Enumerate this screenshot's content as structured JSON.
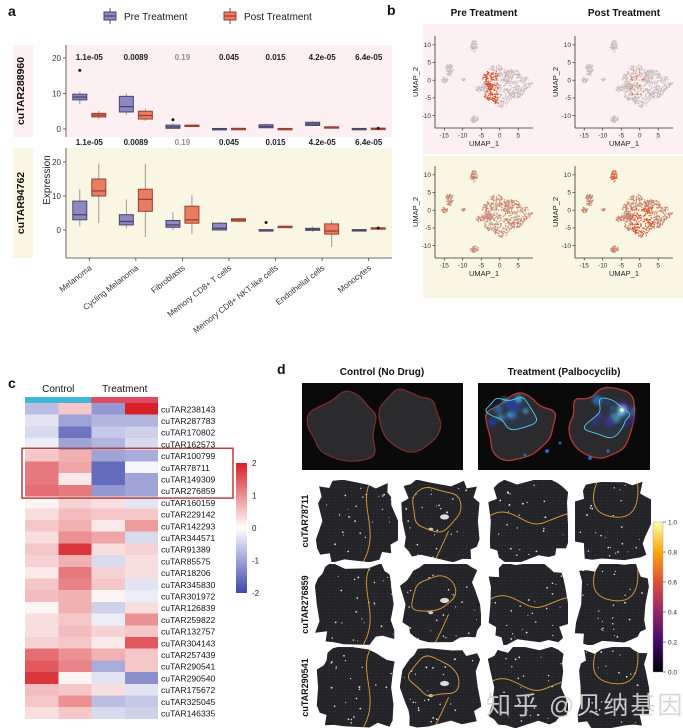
{
  "panel_labels": {
    "a": "a",
    "b": "b",
    "c": "c",
    "d": "d"
  },
  "watermark": "知乎 @贝纳基因",
  "chart_data": [
    {
      "id": "a",
      "type": "box",
      "legend": [
        {
          "name": "Pre Treatment",
          "fill": "#8d87c3",
          "stroke": "#4a4668"
        },
        {
          "name": "Post Treatment",
          "fill": "#e87d64",
          "stroke": "#99402f"
        }
      ],
      "ylabel": "Expression",
      "categories": [
        "Melanoma",
        "Cycling Melanoma",
        "Fibroblasts",
        "Memory CD8+ T cells",
        "Memory CD8+ NKT-like cells",
        "Endothelial cells",
        "Monocytes"
      ],
      "nonsig_pvalue": "0.19",
      "facets": [
        {
          "gene": "cuTAR288960",
          "bg": "#fcf0f2",
          "yticks": [
            0,
            10,
            20
          ],
          "pvalues": [
            "1.1e-05",
            "0.0089",
            "0.19",
            "0.045",
            "0.015",
            "4.2e-05",
            "6.4e-05"
          ],
          "pre": [
            {
              "lo": 7,
              "q1": 8.2,
              "med": 9,
              "q3": 9.8,
              "hi": 10.5,
              "out": [
                16.5
              ]
            },
            {
              "lo": 4,
              "q1": 4.8,
              "med": 6.3,
              "q3": 9.2,
              "hi": 10,
              "out": []
            },
            {
              "lo": 0,
              "q1": 0.2,
              "med": 0.6,
              "q3": 1.1,
              "hi": 1.5,
              "out": [
                2.6
              ]
            },
            {
              "lo": 0,
              "q1": 0.02,
              "med": 0.08,
              "q3": 0.15,
              "hi": 0.2,
              "out": []
            },
            {
              "lo": 0.2,
              "q1": 0.35,
              "med": 0.7,
              "q3": 1.2,
              "hi": 1.5,
              "out": []
            },
            {
              "lo": 0.8,
              "q1": 1.0,
              "med": 1.4,
              "q3": 1.9,
              "hi": 2.2,
              "out": []
            },
            {
              "lo": 0,
              "q1": 0.03,
              "med": 0.1,
              "q3": 0.16,
              "hi": 0.2,
              "out": []
            }
          ],
          "post": [
            {
              "lo": 2.8,
              "q1": 3.4,
              "med": 3.9,
              "q3": 4.4,
              "hi": 5.1,
              "out": []
            },
            {
              "lo": 2.3,
              "q1": 2.8,
              "med": 3.8,
              "q3": 5.0,
              "hi": 5.8,
              "out": []
            },
            {
              "lo": 0.6,
              "q1": 0.75,
              "med": 0.9,
              "q3": 1.1,
              "hi": 1.2,
              "out": []
            },
            {
              "lo": 0,
              "q1": 0.05,
              "med": 0.12,
              "q3": 0.18,
              "hi": 0.22,
              "out": []
            },
            {
              "lo": 0,
              "q1": 0.04,
              "med": 0.1,
              "q3": 0.16,
              "hi": 0.2,
              "out": []
            },
            {
              "lo": 0.3,
              "q1": 0.4,
              "med": 0.5,
              "q3": 0.62,
              "hi": 0.72,
              "out": []
            },
            {
              "lo": 0,
              "q1": 0.06,
              "med": 0.15,
              "q3": 0.22,
              "hi": 0.27,
              "out": [
                0.2
              ]
            }
          ]
        },
        {
          "gene": "cuTAR94762",
          "bg": "#f9f7e3",
          "yticks": [
            0,
            10,
            20
          ],
          "pvalues": [
            "1.1e-05",
            "0.0089",
            "0.19",
            "0.045",
            "0.015",
            "4.2e-05",
            "6.4e-05"
          ],
          "pre": [
            {
              "lo": 1,
              "q1": 3,
              "med": 4.5,
              "q3": 8.5,
              "hi": 12,
              "out": []
            },
            {
              "lo": 0.5,
              "q1": 1.5,
              "med": 2.5,
              "q3": 4.5,
              "hi": 9,
              "out": []
            },
            {
              "lo": 0,
              "q1": 0.8,
              "med": 1.5,
              "q3": 2.8,
              "hi": 5.2,
              "out": []
            },
            {
              "lo": -0.2,
              "q1": 0,
              "med": 0.5,
              "q3": 2,
              "hi": 2.3,
              "out": []
            },
            {
              "lo": -0.1,
              "q1": -0.02,
              "med": 0.03,
              "q3": 0.08,
              "hi": 0.12,
              "out": [
                2.2
              ]
            },
            {
              "lo": -0.5,
              "q1": -0.1,
              "med": 0.2,
              "q3": 0.5,
              "hi": 1,
              "out": []
            },
            {
              "lo": -0.05,
              "q1": 0,
              "med": 0.05,
              "q3": 0.1,
              "hi": 0.15,
              "out": []
            }
          ],
          "post": [
            {
              "lo": 2,
              "q1": 10,
              "med": 11.5,
              "q3": 15,
              "hi": 19.5,
              "out": []
            },
            {
              "lo": -2,
              "q1": 5.5,
              "med": 9,
              "q3": 12,
              "hi": 19.5,
              "out": []
            },
            {
              "lo": -1.2,
              "q1": 2,
              "med": 3,
              "q3": 7,
              "hi": 10.2,
              "out": []
            },
            {
              "lo": 2.2,
              "q1": 2.6,
              "med": 3,
              "q3": 3.3,
              "hi": 3.5,
              "out": []
            },
            {
              "lo": 0.8,
              "q1": 0.9,
              "med": 1,
              "q3": 1.1,
              "hi": 1.2,
              "out": []
            },
            {
              "lo": -5,
              "q1": -1.2,
              "med": -0.3,
              "q3": 1.8,
              "hi": 2.8,
              "out": []
            },
            {
              "lo": 0.3,
              "q1": 0.42,
              "med": 0.55,
              "q3": 0.65,
              "hi": 0.72,
              "out": [
                0.6
              ]
            }
          ]
        }
      ]
    },
    {
      "id": "b",
      "type": "scatter",
      "col_titles": [
        "Pre Treatment",
        "Post Treatment"
      ],
      "xlabel": "UMAP_1",
      "ylabel": "UMAP_2",
      "xticks": [
        -15,
        -10,
        -5,
        0,
        5
      ],
      "yticks": [
        -10,
        -5,
        0,
        5,
        10
      ],
      "xlim": [
        -17.5,
        9
      ],
      "ylim": [
        -13.5,
        12.5
      ],
      "row_bg": [
        "#fcf0f2",
        "#f9f7e3"
      ]
    },
    {
      "id": "c",
      "type": "heatmap",
      "col_groups": [
        {
          "name": "Control",
          "color": "#41b6d9",
          "n_cols": 2
        },
        {
          "name": "Treatment",
          "color": "#e04a5f",
          "n_cols": 2
        }
      ],
      "colorbar_ticks": [
        2,
        1,
        0,
        -1,
        -2
      ],
      "vlim": [
        -2,
        2
      ],
      "highlight_rows": [
        "cuTAR100799",
        "cuTAR78711",
        "cuTAR149309",
        "cuTAR276859"
      ],
      "rows": [
        "cuTAR238143",
        "cuTAR287783",
        "cuTAR170802",
        "cuTAR162573",
        "cuTAR100799",
        "cuTAR78711",
        "cuTAR149309",
        "cuTAR276859",
        "cuTAR160159",
        "cuTAR229142",
        "cuTAR142293",
        "cuTAR344571",
        "cuTAR91389",
        "cuTAR85575",
        "cuTAR18206",
        "cuTAR345830",
        "cuTAR301972",
        "cuTAR126839",
        "cuTAR259822",
        "cuTAR132757",
        "cuTAR304143",
        "cuTAR257439",
        "cuTAR290541",
        "cuTAR290540",
        "cuTAR175672",
        "cuTAR325045",
        "cuTAR146335"
      ],
      "values": [
        [
          -0.7,
          0.5,
          -1.1,
          2.0
        ],
        [
          -0.3,
          -1.0,
          -0.8,
          -0.8
        ],
        [
          -0.4,
          -1.5,
          -0.6,
          -0.5
        ],
        [
          -0.2,
          -1.0,
          -0.8,
          -0.4
        ],
        [
          0.5,
          0.7,
          -1.0,
          -0.9
        ],
        [
          1.2,
          0.8,
          -1.6,
          -0.1
        ],
        [
          1.2,
          0.2,
          -1.6,
          -1.0
        ],
        [
          1.3,
          1.2,
          -1.1,
          -1.0
        ],
        [
          0.1,
          0.4,
          0.3,
          -0.3
        ],
        [
          0.3,
          0.6,
          0.5,
          0.5
        ],
        [
          0.5,
          0.7,
          0.2,
          0.9
        ],
        [
          0.3,
          1.0,
          0.8,
          -0.4
        ],
        [
          0.5,
          1.8,
          0.3,
          0.4
        ],
        [
          0.4,
          0.7,
          -0.4,
          0.3
        ],
        [
          0.2,
          1.2,
          0.4,
          0.3
        ],
        [
          0.5,
          1.1,
          0.5,
          -0.3
        ],
        [
          0.6,
          0.7,
          0.1,
          -0.2
        ],
        [
          0.1,
          0.7,
          -0.5,
          0.3
        ],
        [
          0.3,
          0.5,
          -0.2,
          1.0
        ],
        [
          0.3,
          0.6,
          0.4,
          0.5
        ],
        [
          0.4,
          0.5,
          0.2,
          1.5
        ],
        [
          1.3,
          1.0,
          0.7,
          0.5
        ],
        [
          1.5,
          1.1,
          -0.9,
          0.5
        ],
        [
          1.8,
          0.1,
          -0.3,
          -1.2
        ],
        [
          0.6,
          0.5,
          0.3,
          -0.3
        ],
        [
          0.5,
          1.0,
          -0.7,
          -0.6
        ],
        [
          0.3,
          0.5,
          -0.4,
          -0.5
        ]
      ]
    },
    {
      "id": "d",
      "type": "table",
      "col_titles": [
        "Control (No Drug)",
        "Treatment (Palbocyclib)"
      ],
      "row_labels": [
        "cuTAR78711",
        "cuTAR276859",
        "cuTAR290541"
      ],
      "colorbar_ticks": [
        "1.0",
        "0.8",
        "0.6",
        "0.4",
        "0.2",
        "0.0"
      ]
    }
  ]
}
